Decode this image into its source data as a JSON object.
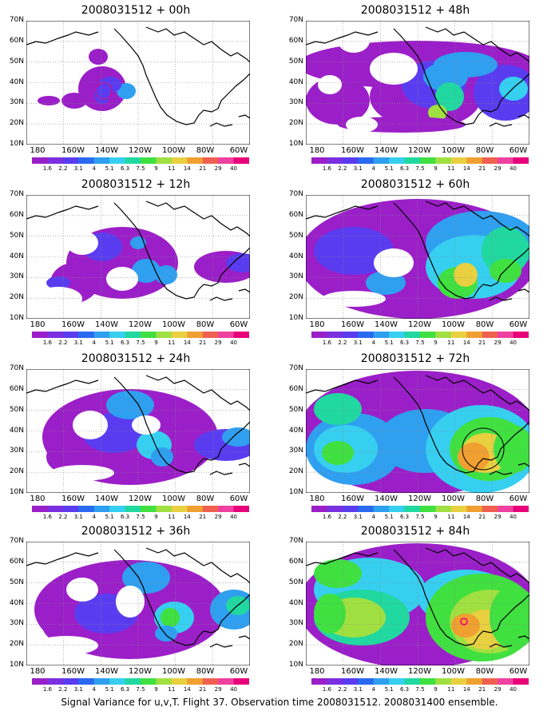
{
  "panels": [
    {
      "title": "2008031512 + 00h"
    },
    {
      "title": "2008031512 + 48h"
    },
    {
      "title": "2008031512 + 12h"
    },
    {
      "title": "2008031512 + 60h"
    },
    {
      "title": "2008031512 + 24h"
    },
    {
      "title": "2008031512 + 72h"
    },
    {
      "title": "2008031512 + 36h"
    },
    {
      "title": "2008031512 + 84h"
    }
  ],
  "lat_labels": [
    "70N",
    "60N",
    "50N",
    "40N",
    "30N",
    "20N",
    "10N"
  ],
  "lon_labels": [
    "180",
    "160W",
    "140W",
    "120W",
    "100W",
    "80W",
    "60W"
  ],
  "colorbar_labels": [
    "1.6",
    "2.2",
    "3.1",
    "4",
    "5.1",
    "6.3",
    "7.5",
    "9",
    "11",
    "14",
    "21",
    "29",
    "40"
  ],
  "colorbar_colors": [
    "#9b1fc8",
    "#7a30e0",
    "#5a3cf0",
    "#2a6af0",
    "#2f9ff0",
    "#36cff0",
    "#20d8a0",
    "#40e040",
    "#a0e040",
    "#e8d040",
    "#f0a030",
    "#f06050",
    "#f040a0",
    "#e8007a"
  ],
  "caption": "Signal Variance for u,v,T. Flight 37. Observation time 2008031512. 2008031400 ensemble.",
  "colors": {
    "purple": "#9b1fc8",
    "blue": "#2a6af0",
    "cyan": "#36cff0",
    "teal": "#20d8a0",
    "green": "#40e040",
    "yellow": "#e8d040",
    "orange": "#f0a030",
    "red": "#f06050",
    "magenta": "#e8007a"
  }
}
